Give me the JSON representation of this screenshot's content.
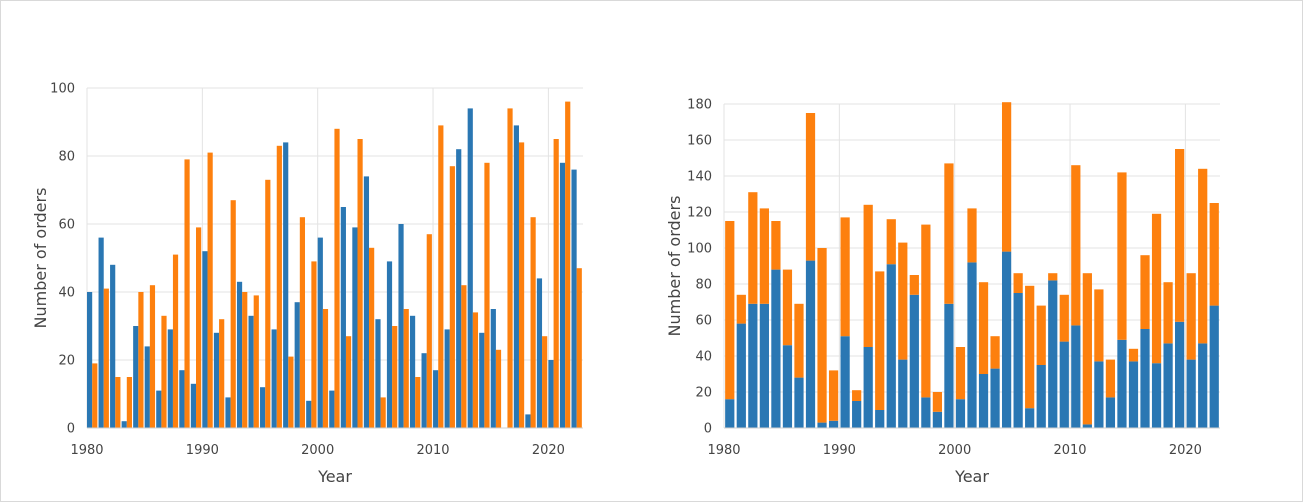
{
  "colors": {
    "series_a": "#2a77b3",
    "series_b": "#fd800e"
  },
  "chart_data": [
    {
      "type": "bar",
      "mode": "grouped",
      "xlabel": "Year",
      "ylabel": "Number of orders",
      "ylim": [
        0,
        100
      ],
      "xlim": [
        1980,
        2022
      ],
      "x_ticks": [
        1980,
        1990,
        2000,
        2010,
        2020
      ],
      "y_ticks": [
        0,
        20,
        40,
        60,
        80,
        100
      ],
      "grid": true,
      "x": [
        1980,
        1981,
        1982,
        1983,
        1984,
        1985,
        1986,
        1987,
        1988,
        1989,
        1990,
        1991,
        1992,
        1993,
        1994,
        1995,
        1996,
        1997,
        1998,
        1999,
        2000,
        2001,
        2002,
        2003,
        2004,
        2005,
        2006,
        2007,
        2008,
        2009,
        2010,
        2011,
        2012,
        2013,
        2014,
        2015,
        2016,
        2017,
        2018,
        2019,
        2020,
        2021,
        2022
      ],
      "series": [
        {
          "color": "#2a77b3",
          "values": [
            40,
            56,
            48,
            2,
            30,
            24,
            11,
            29,
            17,
            13,
            52,
            28,
            9,
            43,
            33,
            12,
            29,
            84,
            37,
            8,
            56,
            11,
            65,
            59,
            74,
            32,
            49,
            60,
            33,
            22,
            17,
            29,
            82,
            94,
            28,
            35,
            0,
            89,
            4,
            44,
            20,
            78,
            76
          ]
        },
        {
          "color": "#fd800e",
          "values": [
            19,
            41,
            15,
            15,
            40,
            42,
            33,
            51,
            79,
            59,
            81,
            32,
            67,
            40,
            39,
            73,
            83,
            21,
            62,
            49,
            35,
            88,
            27,
            85,
            53,
            9,
            30,
            35,
            15,
            57,
            89,
            77,
            42,
            34,
            78,
            23,
            94,
            84,
            62,
            27,
            85,
            96,
            47
          ]
        }
      ]
    },
    {
      "type": "bar",
      "mode": "stacked",
      "xlabel": "Year",
      "ylabel": "Number of orders",
      "ylim": [
        0,
        180
      ],
      "xlim": [
        1980,
        2022
      ],
      "x_ticks": [
        1980,
        1990,
        2000,
        2010,
        2020
      ],
      "y_ticks": [
        0,
        20,
        40,
        60,
        80,
        100,
        120,
        140,
        160,
        180
      ],
      "grid": true,
      "x": [
        1980,
        1981,
        1982,
        1983,
        1984,
        1985,
        1986,
        1987,
        1988,
        1989,
        1990,
        1991,
        1992,
        1993,
        1994,
        1995,
        1996,
        1997,
        1998,
        1999,
        2000,
        2001,
        2002,
        2003,
        2004,
        2005,
        2006,
        2007,
        2008,
        2009,
        2010,
        2011,
        2012,
        2013,
        2014,
        2015,
        2016,
        2017,
        2018,
        2019,
        2020,
        2021,
        2022
      ],
      "series": [
        {
          "color": "#2a77b3",
          "values": [
            16,
            58,
            69,
            69,
            88,
            46,
            28,
            93,
            3,
            4,
            51,
            15,
            45,
            10,
            91,
            38,
            74,
            17,
            9,
            69,
            16,
            92,
            30,
            33,
            98,
            75,
            11,
            35,
            82,
            48,
            57,
            2,
            37,
            17,
            49,
            37,
            55,
            36,
            47,
            59,
            38,
            47,
            68
          ]
        },
        {
          "color": "#fd800e",
          "values": [
            99,
            16,
            62,
            53,
            27,
            42,
            41,
            82,
            97,
            28,
            66,
            6,
            79,
            77,
            25,
            65,
            11,
            96,
            11,
            78,
            29,
            30,
            51,
            18,
            83,
            11,
            68,
            33,
            4,
            26,
            89,
            84,
            40,
            21,
            93,
            7,
            41,
            83,
            34,
            96,
            48,
            97,
            57
          ]
        }
      ]
    }
  ]
}
